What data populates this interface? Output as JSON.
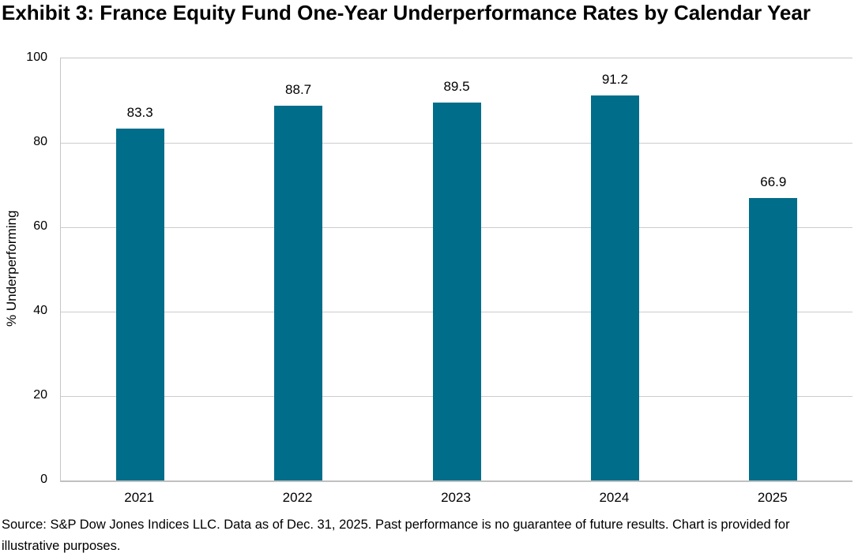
{
  "page": {
    "title": "Exhibit 3: France Equity Fund One-Year Underperformance Rates by Calendar Year",
    "source_note": "Source: S&P Dow Jones Indices LLC. Data as of Dec. 31, 2025. Past performance is no guarantee of future results. Chart is provided for illustrative purposes."
  },
  "chart_data": {
    "type": "bar",
    "title": "Exhibit 3: France Equity Fund One-Year Underperformance Rates by Calendar Year",
    "categories": [
      "2021",
      "2022",
      "2023",
      "2024",
      "2025"
    ],
    "values": [
      83.3,
      88.7,
      89.5,
      91.2,
      66.9
    ],
    "value_labels": [
      "83.3",
      "88.7",
      "89.5",
      "91.2",
      "66.9"
    ],
    "xlabel": "",
    "ylabel": "% Underperforming",
    "ylim": [
      0,
      100
    ],
    "yticks": [
      0,
      20,
      40,
      60,
      80,
      100
    ],
    "grid": true,
    "legend": "none",
    "colors": {
      "bar": "#006d8a",
      "gridline": "#cccccc",
      "axis_border": "#c6c6c6",
      "text": "#000000",
      "background": "#ffffff"
    }
  }
}
